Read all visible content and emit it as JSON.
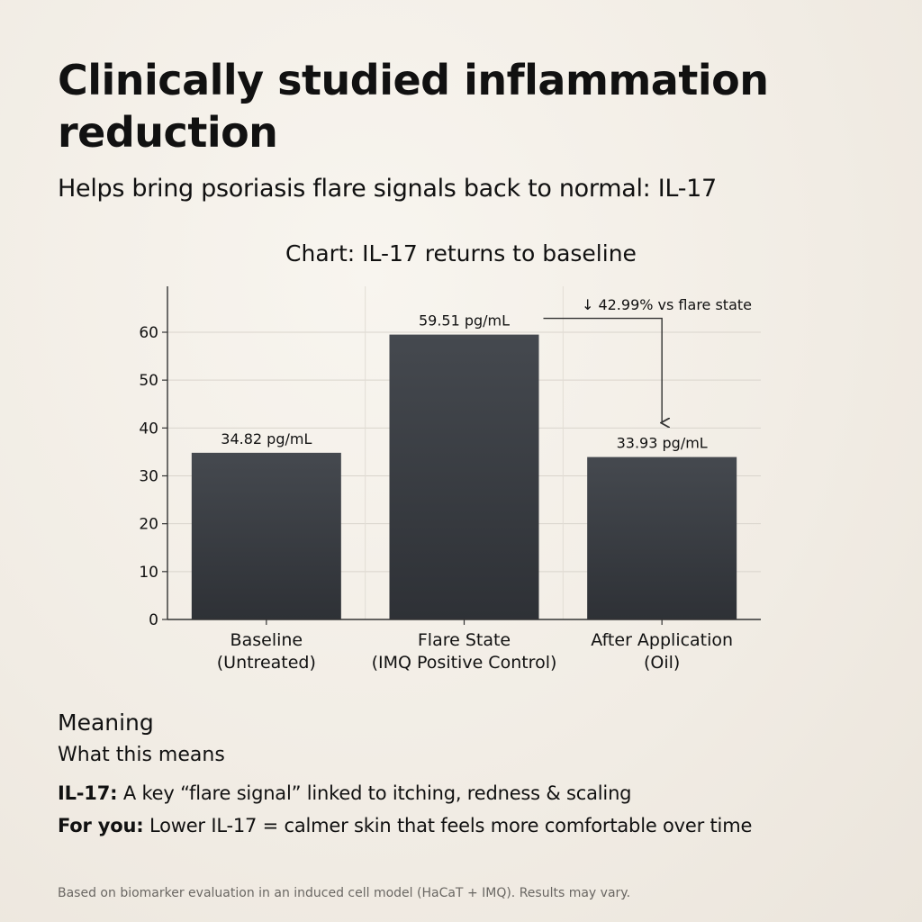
{
  "header": {
    "title": "Clinically studied inflammation reduction",
    "subtitle": "Helps bring psoriasis flare signals back to normal: IL-17"
  },
  "chart_data": {
    "type": "bar",
    "title": "Chart: IL-17 returns to baseline",
    "categories": [
      [
        "Baseline",
        "(Untreated)"
      ],
      [
        "Flare State",
        "(IMQ Positive Control)"
      ],
      [
        "After Application",
        "(Oil)"
      ]
    ],
    "values": [
      34.82,
      59.51,
      33.93
    ],
    "data_labels": [
      "34.82 pg/mL",
      "59.51 pg/mL",
      "33.93 pg/mL"
    ],
    "ylim": [
      0,
      70
    ],
    "yticks": [
      0,
      10,
      20,
      30,
      40,
      50,
      60
    ],
    "xlabel": "",
    "ylabel": "",
    "grid": true,
    "annotation": {
      "text": "↓ 42.99% vs flare state",
      "from_category": 1,
      "to_category": 2
    },
    "bar_color": "#2e3136",
    "bar_color_top": "#45494f"
  },
  "meaning": {
    "heading": "Meaning",
    "subheading": "What this means",
    "lines": [
      {
        "label": "IL-17:",
        "text": " A key “flare signal” linked to itching, redness & scaling"
      },
      {
        "label": "For you:",
        "text": " Lower IL-17 = calmer skin that feels more comfortable over time"
      }
    ]
  },
  "footnote": "Based on biomarker evaluation in an induced cell model (HaCaT + IMQ). Results may vary."
}
